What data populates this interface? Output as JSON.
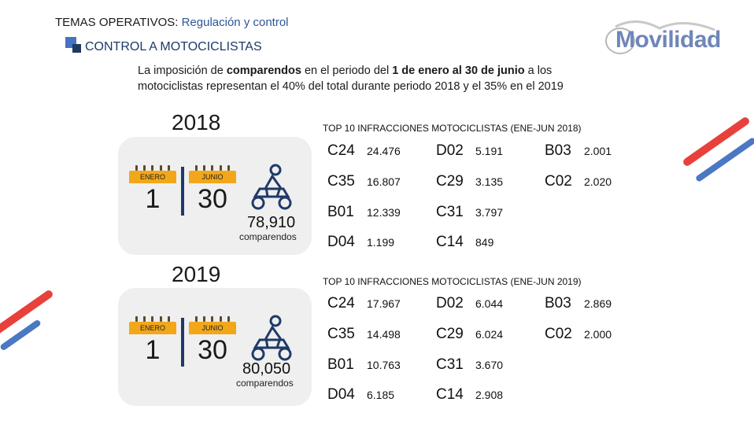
{
  "header": {
    "main": "TEMAS OPERATIVOS:",
    "sub": "Regulación y control"
  },
  "section_title": "CONTROL A MOTOCICLISTAS",
  "logo_text": "Movilidad",
  "intro": {
    "p1": "La imposición de ",
    "b1": "comparendos",
    "p2": " en el periodo del ",
    "b2": "1 de enero al 30 de junio",
    "p3": " a los motociclistas representan el 40% del total durante periodo 2018 y el 35% en el 2019"
  },
  "colors": {
    "accent_red": "#e8413c",
    "accent_blue": "#4a78c2",
    "calendar_orange": "#f2a71b",
    "navy": "#1f3a68"
  },
  "year2018": {
    "year": "2018",
    "cal_start": {
      "month": "ENERO",
      "day": "1"
    },
    "cal_end": {
      "month": "JUNIO",
      "day": "30"
    },
    "count": "78,910",
    "count_label": "comparendos",
    "icon": "motorcycle-rider-icon",
    "top_title": "TOP 10 INFRACCIONES MOTOCICLISTAS (ENE-JUN 2018)",
    "infractions": [
      {
        "code": "C24",
        "value": "24.476"
      },
      {
        "code": "D02",
        "value": "5.191"
      },
      {
        "code": "B03",
        "value": "2.001"
      },
      {
        "code": "C35",
        "value": "16.807"
      },
      {
        "code": "C29",
        "value": "3.135"
      },
      {
        "code": "C02",
        "value": "2.020"
      },
      {
        "code": "B01",
        "value": "12.339"
      },
      {
        "code": "C31",
        "value": "3.797"
      },
      {
        "code": "D04",
        "value": "1.199"
      },
      {
        "code": "C14",
        "value": "849"
      }
    ]
  },
  "year2019": {
    "year": "2019",
    "cal_start": {
      "month": "ENERO",
      "day": "1"
    },
    "cal_end": {
      "month": "JUNIO",
      "day": "30"
    },
    "count": "80,050",
    "count_label": "comparendos",
    "icon": "motorcycle-rider-icon",
    "top_title": "TOP 10 INFRACCIONES MOTOCICLISTAS (ENE-JUN 2019)",
    "infractions": [
      {
        "code": "C24",
        "value": "17.967"
      },
      {
        "code": "D02",
        "value": "6.044"
      },
      {
        "code": "B03",
        "value": "2.869"
      },
      {
        "code": "C35",
        "value": "14.498"
      },
      {
        "code": "C29",
        "value": "6.024"
      },
      {
        "code": "C02",
        "value": "2.000"
      },
      {
        "code": "B01",
        "value": "10.763"
      },
      {
        "code": "C31",
        "value": "3.670"
      },
      {
        "code": "D04",
        "value": "6.185"
      },
      {
        "code": "C14",
        "value": "2.908"
      }
    ]
  }
}
